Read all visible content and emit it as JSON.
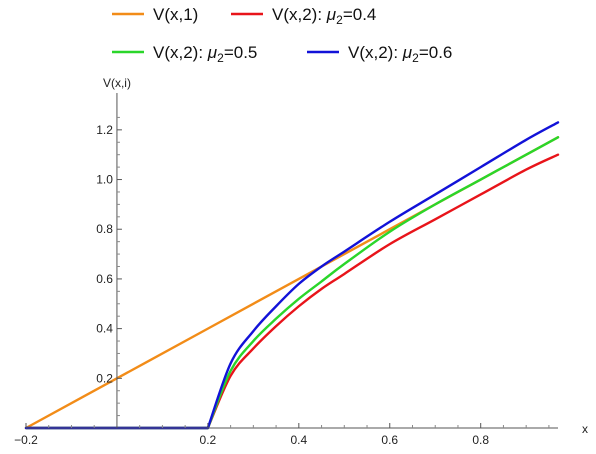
{
  "chart_data": {
    "type": "line",
    "xlabel": "x",
    "ylabel": "V(x,i)",
    "xlim": [
      -0.2,
      0.97
    ],
    "ylim": [
      0.0,
      1.3
    ],
    "x_ticks": [
      {
        "value": -0.2,
        "label": "-0.2"
      },
      {
        "value": 0.2,
        "label": "0.2"
      },
      {
        "value": 0.4,
        "label": "0.4"
      },
      {
        "value": 0.6,
        "label": "0.6"
      },
      {
        "value": 0.8,
        "label": "0.8"
      }
    ],
    "y_ticks": [
      {
        "value": 0.2,
        "label": "0.2"
      },
      {
        "value": 0.4,
        "label": "0.4"
      },
      {
        "value": 0.6,
        "label": "0.6"
      },
      {
        "value": 0.8,
        "label": "0.8"
      },
      {
        "value": 1.0,
        "label": "1.0"
      },
      {
        "value": 1.2,
        "label": "1.2"
      }
    ],
    "legend_position": "top",
    "grid": false,
    "series": [
      {
        "name": "V(x,1)",
        "legend_prefix": "V(x,1)",
        "legend_mu": "",
        "legend_value": "",
        "color": "#f28c18",
        "x": [
          -0.2,
          0.0,
          0.2,
          0.4,
          0.6,
          0.8,
          0.97
        ],
        "y": [
          0.0,
          0.2,
          0.4,
          0.6,
          0.8,
          1.0,
          1.17
        ]
      },
      {
        "name": "V(x,2): μ2=0.4",
        "legend_prefix": "V(x,2): ",
        "legend_mu": "μ",
        "legend_sub": "2",
        "legend_value": "=0.4",
        "color": "#e8141a",
        "x": [
          -0.2,
          0.0,
          0.2,
          0.25,
          0.3,
          0.35,
          0.4,
          0.45,
          0.5,
          0.6,
          0.7,
          0.8,
          0.9,
          0.97
        ],
        "y": [
          0.0,
          0.0,
          0.0,
          0.21,
          0.32,
          0.41,
          0.49,
          0.56,
          0.62,
          0.74,
          0.84,
          0.94,
          1.04,
          1.1
        ]
      },
      {
        "name": "V(x,2): μ2=0.5",
        "legend_prefix": "V(x,2): ",
        "legend_mu": "μ",
        "legend_sub": "2",
        "legend_value": "=0.5",
        "color": "#2ad62a",
        "x": [
          -0.2,
          0.0,
          0.2,
          0.25,
          0.3,
          0.35,
          0.4,
          0.45,
          0.5,
          0.6,
          0.7,
          0.8,
          0.9,
          0.97
        ],
        "y": [
          0.0,
          0.0,
          0.0,
          0.23,
          0.35,
          0.44,
          0.52,
          0.59,
          0.66,
          0.79,
          0.9,
          1.0,
          1.1,
          1.17
        ]
      },
      {
        "name": "V(x,2): μ2=0.6",
        "legend_prefix": "V(x,2): ",
        "legend_mu": "μ",
        "legend_sub": "2",
        "legend_value": "=0.6",
        "color": "#1212d8",
        "x": [
          -0.2,
          0.0,
          0.2,
          0.25,
          0.3,
          0.35,
          0.4,
          0.45,
          0.5,
          0.6,
          0.7,
          0.8,
          0.9,
          0.97
        ],
        "y": [
          0.0,
          0.0,
          0.0,
          0.26,
          0.39,
          0.49,
          0.58,
          0.65,
          0.71,
          0.83,
          0.94,
          1.05,
          1.16,
          1.23
        ]
      }
    ]
  }
}
